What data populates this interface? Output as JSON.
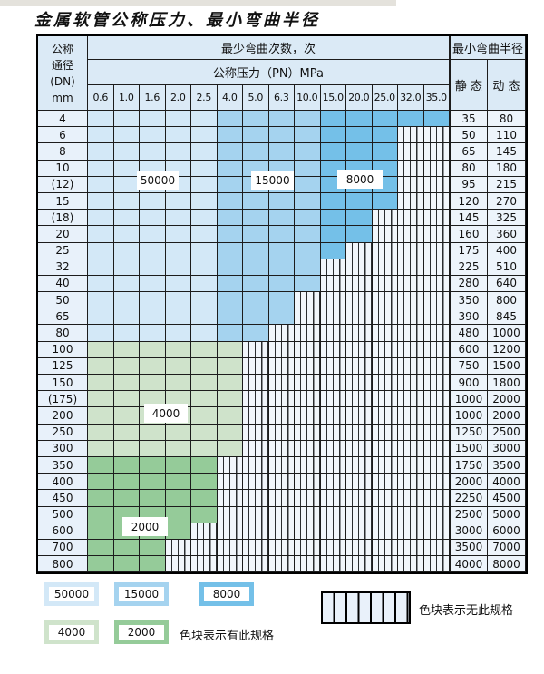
{
  "page": {
    "title": "金属软管公称压力、最小弯曲半径"
  },
  "chart_data": {
    "type": "table",
    "title": "金属软管公称压力、最小弯曲半径",
    "header": {
      "corner_lines": [
        "公称",
        "通径",
        "(DN)",
        "mm"
      ],
      "bend_cycles": "最少弯曲次数，次",
      "pressure": "公称压力（PN）MPa",
      "radius": "最小弯曲半径",
      "static": "静 态",
      "dynamic": "动 态"
    },
    "pressure_columns": [
      "0.6",
      "1.0",
      "1.6",
      "2.0",
      "2.5",
      "4.0",
      "5.0",
      "6.3",
      "10.0",
      "15.0",
      "20.0",
      "25.0",
      "32.0",
      "35.0"
    ],
    "cycle_bands": {
      "blue_by_column": [
        {
          "cycles": "50000",
          "from_col": 0,
          "to_col": 4
        },
        {
          "cycles": "15000",
          "from_col": 5,
          "to_col": 8
        },
        {
          "cycles": "8000",
          "from_col": 9,
          "to_col": 13
        }
      ],
      "green_by_row": {
        "4000": "DN 100-300",
        "2000": "DN 350-800"
      }
    },
    "rows": [
      {
        "dn": "4",
        "colored_cols": 14,
        "palette": "blue",
        "static": "35",
        "dynamic": "80"
      },
      {
        "dn": "6",
        "colored_cols": 12,
        "palette": "blue",
        "static": "50",
        "dynamic": "110"
      },
      {
        "dn": "8",
        "colored_cols": 12,
        "palette": "blue",
        "static": "65",
        "dynamic": "145"
      },
      {
        "dn": "10",
        "colored_cols": 12,
        "palette": "blue",
        "static": "80",
        "dynamic": "180"
      },
      {
        "dn": "(12)",
        "colored_cols": 12,
        "palette": "blue",
        "static": "95",
        "dynamic": "215"
      },
      {
        "dn": "15",
        "colored_cols": 12,
        "palette": "blue",
        "static": "120",
        "dynamic": "270"
      },
      {
        "dn": "(18)",
        "colored_cols": 11,
        "palette": "blue",
        "static": "145",
        "dynamic": "325"
      },
      {
        "dn": "20",
        "colored_cols": 11,
        "palette": "blue",
        "static": "160",
        "dynamic": "360"
      },
      {
        "dn": "25",
        "colored_cols": 10,
        "palette": "blue",
        "static": "175",
        "dynamic": "400"
      },
      {
        "dn": "32",
        "colored_cols": 9,
        "palette": "blue",
        "static": "225",
        "dynamic": "510"
      },
      {
        "dn": "40",
        "colored_cols": 9,
        "palette": "blue",
        "static": "280",
        "dynamic": "640"
      },
      {
        "dn": "50",
        "colored_cols": 8,
        "palette": "blue",
        "static": "350",
        "dynamic": "800"
      },
      {
        "dn": "65",
        "colored_cols": 8,
        "palette": "blue",
        "static": "390",
        "dynamic": "845"
      },
      {
        "dn": "80",
        "colored_cols": 7,
        "palette": "blue",
        "static": "480",
        "dynamic": "1000"
      },
      {
        "dn": "100",
        "colored_cols": 6,
        "palette": "g4000",
        "static": "600",
        "dynamic": "1200"
      },
      {
        "dn": "125",
        "colored_cols": 6,
        "palette": "g4000",
        "static": "750",
        "dynamic": "1500"
      },
      {
        "dn": "150",
        "colored_cols": 6,
        "palette": "g4000",
        "static": "900",
        "dynamic": "1800"
      },
      {
        "dn": "(175)",
        "colored_cols": 6,
        "palette": "g4000",
        "static": "1000",
        "dynamic": "2000"
      },
      {
        "dn": "200",
        "colored_cols": 6,
        "palette": "g4000",
        "static": "1000",
        "dynamic": "2000"
      },
      {
        "dn": "250",
        "colored_cols": 6,
        "palette": "g4000",
        "static": "1250",
        "dynamic": "2500"
      },
      {
        "dn": "300",
        "colored_cols": 6,
        "palette": "g4000",
        "static": "1500",
        "dynamic": "3000"
      },
      {
        "dn": "350",
        "colored_cols": 5,
        "palette": "g2000",
        "static": "1750",
        "dynamic": "3500"
      },
      {
        "dn": "400",
        "colored_cols": 5,
        "palette": "g2000",
        "static": "2000",
        "dynamic": "4000"
      },
      {
        "dn": "450",
        "colored_cols": 5,
        "palette": "g2000",
        "static": "2250",
        "dynamic": "4500"
      },
      {
        "dn": "500",
        "colored_cols": 5,
        "palette": "g2000",
        "static": "2500",
        "dynamic": "5000"
      },
      {
        "dn": "600",
        "colored_cols": 4,
        "palette": "g2000",
        "static": "3000",
        "dynamic": "6000"
      },
      {
        "dn": "700",
        "colored_cols": 3,
        "palette": "g2000",
        "static": "3500",
        "dynamic": "7000"
      },
      {
        "dn": "800",
        "colored_cols": 3,
        "palette": "g2000",
        "static": "4000",
        "dynamic": "8000"
      }
    ],
    "overlay_labels": {
      "b50000": "50000",
      "b15000": "15000",
      "b8000": "8000",
      "g4000": "4000",
      "g2000": "2000"
    }
  },
  "colors": {
    "b50000": "#d3e8f7",
    "b15000": "#a5d3ef",
    "b8000": "#74c0e8",
    "g4000": "#cfe3cb",
    "g2000": "#95cb99",
    "hatch_bg": "#f1f6fb",
    "hatch_line": "#2a2d30",
    "header_bg": "#dbeaf6",
    "border": "#1c1c1c"
  },
  "legend": {
    "chips": [
      {
        "label": "50000",
        "color_key": "b50000"
      },
      {
        "label": "15000",
        "color_key": "b15000"
      },
      {
        "label": "8000",
        "color_key": "b8000"
      },
      {
        "label": "4000",
        "color_key": "g4000"
      },
      {
        "label": "2000",
        "color_key": "g2000"
      }
    ],
    "has_spec_text": "色块表示有此规格",
    "no_spec_text": "色块表示无此规格"
  }
}
